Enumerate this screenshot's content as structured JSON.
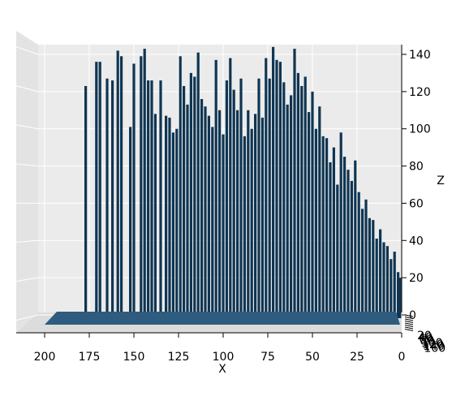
{
  "colors": {
    "bar": "#0f3552",
    "floor": "#2e5b7e",
    "pane_back": "#ebebeb",
    "pane_side": "#e3e3e3",
    "pane_floor": "#dcdcdc",
    "grid": "#ffffff",
    "axis": "#000000"
  },
  "chart_data": {
    "type": "bar3d",
    "view": "3D view looking along the Y axis; Y tick labels crowded at bottom-right",
    "xlabel": "X",
    "ylabel": "",
    "zlabel": "Z",
    "xlim": [
      0,
      210
    ],
    "zlim": [
      0,
      145
    ],
    "x_ticks": [
      "200",
      "175",
      "150",
      "125",
      "100",
      "75",
      "50",
      "25",
      "0"
    ],
    "z_ticks": [
      "0",
      "20",
      "40",
      "60",
      "80",
      "100",
      "120",
      "140"
    ],
    "y_ticks": [
      "20",
      "40",
      "60",
      "80",
      "100",
      "120",
      "140",
      "160"
    ],
    "grid": true,
    "bars": [
      {
        "x": 177,
        "z": 123
      },
      {
        "x": 171,
        "z": 136
      },
      {
        "x": 169,
        "z": 136
      },
      {
        "x": 165,
        "z": 127
      },
      {
        "x": 162,
        "z": 126
      },
      {
        "x": 159,
        "z": 142
      },
      {
        "x": 157,
        "z": 139
      },
      {
        "x": 152,
        "z": 101
      },
      {
        "x": 150,
        "z": 135
      },
      {
        "x": 146,
        "z": 139
      },
      {
        "x": 144,
        "z": 143
      },
      {
        "x": 142,
        "z": 126
      },
      {
        "x": 140,
        "z": 126
      },
      {
        "x": 138,
        "z": 108
      },
      {
        "x": 135,
        "z": 126
      },
      {
        "x": 132,
        "z": 107
      },
      {
        "x": 130,
        "z": 106
      },
      {
        "x": 128,
        "z": 98
      },
      {
        "x": 126,
        "z": 100
      },
      {
        "x": 124,
        "z": 139
      },
      {
        "x": 122,
        "z": 123
      },
      {
        "x": 120,
        "z": 113
      },
      {
        "x": 118,
        "z": 130
      },
      {
        "x": 116,
        "z": 128
      },
      {
        "x": 114,
        "z": 141
      },
      {
        "x": 112,
        "z": 116
      },
      {
        "x": 110,
        "z": 112
      },
      {
        "x": 108,
        "z": 107
      },
      {
        "x": 106,
        "z": 101
      },
      {
        "x": 104,
        "z": 137
      },
      {
        "x": 102,
        "z": 110
      },
      {
        "x": 100,
        "z": 97
      },
      {
        "x": 98,
        "z": 126
      },
      {
        "x": 96,
        "z": 138
      },
      {
        "x": 94,
        "z": 121
      },
      {
        "x": 92,
        "z": 110
      },
      {
        "x": 90,
        "z": 127
      },
      {
        "x": 88,
        "z": 96
      },
      {
        "x": 86,
        "z": 110
      },
      {
        "x": 84,
        "z": 100
      },
      {
        "x": 82,
        "z": 108
      },
      {
        "x": 80,
        "z": 127
      },
      {
        "x": 78,
        "z": 106
      },
      {
        "x": 76,
        "z": 138
      },
      {
        "x": 74,
        "z": 127
      },
      {
        "x": 72,
        "z": 144
      },
      {
        "x": 70,
        "z": 137
      },
      {
        "x": 68,
        "z": 136
      },
      {
        "x": 66,
        "z": 125
      },
      {
        "x": 64,
        "z": 113
      },
      {
        "x": 62,
        "z": 118
      },
      {
        "x": 60,
        "z": 143
      },
      {
        "x": 58,
        "z": 130
      },
      {
        "x": 56,
        "z": 123
      },
      {
        "x": 54,
        "z": 128
      },
      {
        "x": 52,
        "z": 109
      },
      {
        "x": 50,
        "z": 120
      },
      {
        "x": 48,
        "z": 100
      },
      {
        "x": 46,
        "z": 112
      },
      {
        "x": 44,
        "z": 96
      },
      {
        "x": 42,
        "z": 95
      },
      {
        "x": 40,
        "z": 82
      },
      {
        "x": 38,
        "z": 90
      },
      {
        "x": 36,
        "z": 70
      },
      {
        "x": 34,
        "z": 98
      },
      {
        "x": 32,
        "z": 85
      },
      {
        "x": 30,
        "z": 78
      },
      {
        "x": 28,
        "z": 72
      },
      {
        "x": 26,
        "z": 83
      },
      {
        "x": 24,
        "z": 66
      },
      {
        "x": 22,
        "z": 57
      },
      {
        "x": 20,
        "z": 62
      },
      {
        "x": 18,
        "z": 52
      },
      {
        "x": 16,
        "z": 51
      },
      {
        "x": 14,
        "z": 41
      },
      {
        "x": 12,
        "z": 46
      },
      {
        "x": 10,
        "z": 39
      },
      {
        "x": 8,
        "z": 37
      },
      {
        "x": 6,
        "z": 30
      },
      {
        "x": 4,
        "z": 34
      },
      {
        "x": 2,
        "z": 23
      },
      {
        "x": 1,
        "z": 20
      }
    ]
  }
}
